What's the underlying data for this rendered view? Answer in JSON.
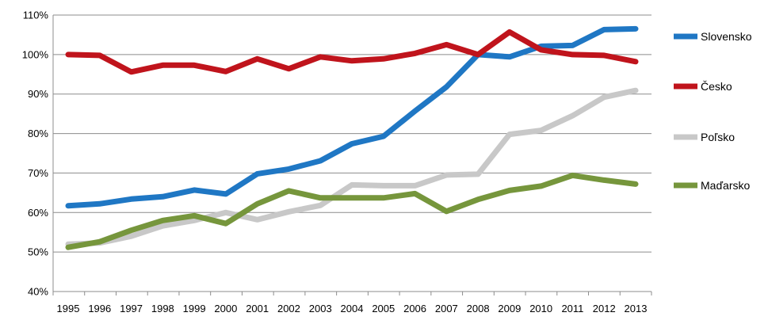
{
  "chart_data": {
    "type": "line",
    "title": "",
    "xlabel": "",
    "ylabel": "",
    "ylim": [
      40,
      110
    ],
    "yticks": [
      40,
      50,
      60,
      70,
      80,
      90,
      100,
      110
    ],
    "ytick_labels": [
      "40%",
      "50%",
      "60%",
      "70%",
      "80%",
      "90%",
      "100%",
      "110%"
    ],
    "grid": true,
    "legend_position": "right",
    "categories": [
      "1995",
      "1996",
      "1997",
      "1998",
      "1999",
      "2000",
      "2001",
      "2002",
      "2003",
      "2004",
      "2005",
      "2006",
      "2007",
      "2008",
      "2009",
      "2010",
      "2011",
      "2012",
      "2013"
    ],
    "series": [
      {
        "name": "Slovensko",
        "color": "#1f77c4",
        "values": [
          61.7,
          62.2,
          63.4,
          64.0,
          65.7,
          64.7,
          69.8,
          71.0,
          73.1,
          77.4,
          79.3,
          85.7,
          91.8,
          100.0,
          99.4,
          102.1,
          102.3,
          106.3,
          106.5
        ]
      },
      {
        "name": "Česko",
        "color": "#c0141c",
        "values": [
          100.0,
          99.8,
          95.6,
          97.3,
          97.3,
          95.7,
          98.9,
          96.4,
          99.4,
          98.4,
          98.9,
          100.3,
          102.5,
          100.0,
          105.7,
          101.2,
          100.0,
          99.8,
          98.2
        ]
      },
      {
        "name": "Poľsko",
        "color": "#c8c8c8",
        "values": [
          52.0,
          52.3,
          54.0,
          56.6,
          58.0,
          60.0,
          58.2,
          60.2,
          61.8,
          67.0,
          66.8,
          66.8,
          69.5,
          69.7,
          79.8,
          80.8,
          84.5,
          89.2,
          90.9
        ]
      },
      {
        "name": "Maďarsko",
        "color": "#76963c",
        "values": [
          51.2,
          52.6,
          55.5,
          58.0,
          59.2,
          57.2,
          62.2,
          65.5,
          63.7,
          63.7,
          63.7,
          64.8,
          60.3,
          63.3,
          65.6,
          66.7,
          69.4,
          68.2,
          67.2
        ]
      }
    ]
  }
}
